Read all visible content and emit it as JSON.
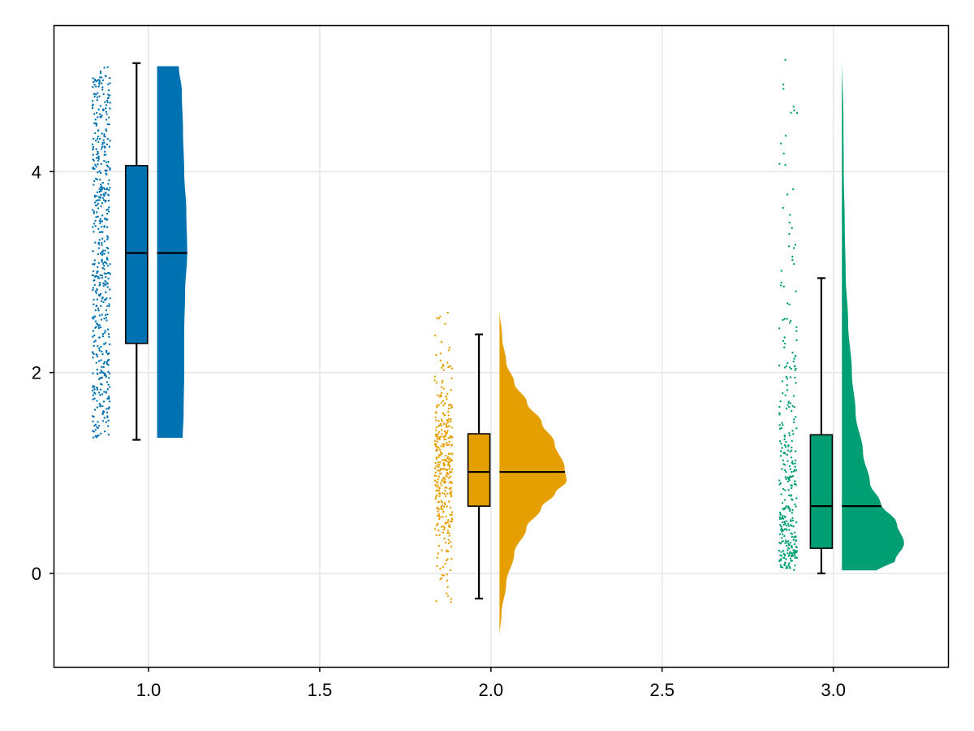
{
  "chart_data": {
    "type": "raincloud",
    "title": "",
    "xlabel": "",
    "ylabel": "",
    "xlim": [
      0.725,
      3.335
    ],
    "ylim": [
      -0.93,
      5.45
    ],
    "x_ticks": [
      1.0,
      1.5,
      2.0,
      2.5,
      3.0
    ],
    "x_tick_labels": [
      "1.0",
      "1.5",
      "2.0",
      "2.5",
      "3.0"
    ],
    "y_ticks": [
      0,
      2,
      4
    ],
    "y_tick_labels": [
      "0",
      "2",
      "4"
    ],
    "grid": true,
    "legend": "none",
    "groups": [
      {
        "x": 1.0,
        "color": "#0072b2",
        "box": {
          "whisker_low": 1.33,
          "q1": 2.29,
          "median": 3.19,
          "q3": 4.06,
          "whisker_high": 5.08
        },
        "density_range": [
          1.35,
          5.05
        ],
        "density_profile": [
          [
            1.35,
            0.85
          ],
          [
            1.6,
            0.88
          ],
          [
            2.0,
            0.9
          ],
          [
            2.4,
            0.9
          ],
          [
            2.8,
            0.93
          ],
          [
            3.19,
            1.0
          ],
          [
            3.6,
            0.97
          ],
          [
            4.0,
            0.9
          ],
          [
            4.4,
            0.86
          ],
          [
            4.8,
            0.82
          ],
          [
            5.05,
            0.72
          ]
        ],
        "density_width": 0.088,
        "scatter_center": 0.862,
        "scatter_points": 520
      },
      {
        "x": 2.0,
        "color": "#e69f00",
        "box": {
          "whisker_low": -0.25,
          "q1": 0.67,
          "median": 1.01,
          "q3": 1.39,
          "whisker_high": 2.38
        },
        "density_range": [
          -0.63,
          2.63
        ],
        "density_profile": [
          [
            -0.63,
            0.0
          ],
          [
            -0.4,
            0.03
          ],
          [
            -0.1,
            0.1
          ],
          [
            0.2,
            0.22
          ],
          [
            0.45,
            0.4
          ],
          [
            0.65,
            0.62
          ],
          [
            0.8,
            0.83
          ],
          [
            0.92,
            1.0
          ],
          [
            1.05,
            0.97
          ],
          [
            1.3,
            0.82
          ],
          [
            1.5,
            0.63
          ],
          [
            1.7,
            0.41
          ],
          [
            1.9,
            0.22
          ],
          [
            2.1,
            0.1
          ],
          [
            2.35,
            0.04
          ],
          [
            2.63,
            0.0
          ]
        ],
        "density_width": 0.196,
        "scatter_center": 1.862,
        "scatter_points": 360
      },
      {
        "x": 3.0,
        "color": "#009e73",
        "box": {
          "whisker_low": 0.0,
          "q1": 0.25,
          "median": 0.67,
          "q3": 1.38,
          "whisker_high": 2.94
        },
        "density_range": [
          0.03,
          5.15
        ],
        "density_profile": [
          [
            0.03,
            0.55
          ],
          [
            0.12,
            0.85
          ],
          [
            0.3,
            1.0
          ],
          [
            0.5,
            0.88
          ],
          [
            0.7,
            0.62
          ],
          [
            0.9,
            0.45
          ],
          [
            1.2,
            0.34
          ],
          [
            1.6,
            0.22
          ],
          [
            2.0,
            0.16
          ],
          [
            2.5,
            0.1
          ],
          [
            3.0,
            0.06
          ],
          [
            3.5,
            0.045
          ],
          [
            4.0,
            0.03
          ],
          [
            4.5,
            0.025
          ],
          [
            5.15,
            0.0
          ]
        ],
        "density_width": 0.182,
        "scatter_center": 2.868,
        "scatter_points": 330
      }
    ]
  }
}
